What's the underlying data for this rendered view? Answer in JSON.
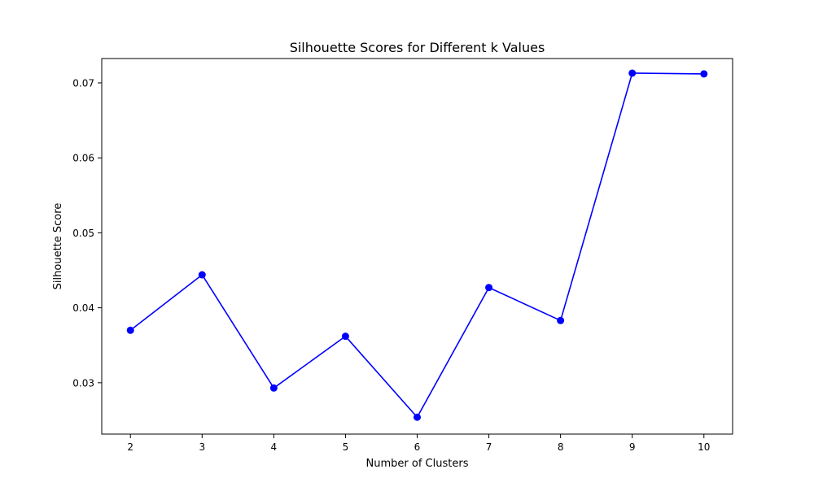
{
  "chart_data": {
    "type": "line",
    "title": "Silhouette Scores for Different k Values",
    "xlabel": "Number of Clusters",
    "ylabel": "Silhouette Score",
    "x": [
      2,
      3,
      4,
      5,
      6,
      7,
      8,
      9,
      10
    ],
    "series": [
      {
        "values": [
          0.037,
          0.0444,
          0.0293,
          0.0362,
          0.0254,
          0.0427,
          0.0383,
          0.0713,
          0.0712
        ],
        "color": "#0000ff",
        "marker": "circle"
      }
    ],
    "xlim": [
      1.6,
      10.4
    ],
    "ylim": [
      0.02315,
      0.07325
    ],
    "xticks": [
      2,
      3,
      4,
      5,
      6,
      7,
      8,
      9,
      10
    ],
    "yticks": [
      0.03,
      0.04,
      0.05,
      0.06,
      0.07
    ],
    "ytick_labels": [
      "0.03",
      "0.04",
      "0.05",
      "0.06",
      "0.07"
    ],
    "grid": false,
    "legend": false
  }
}
